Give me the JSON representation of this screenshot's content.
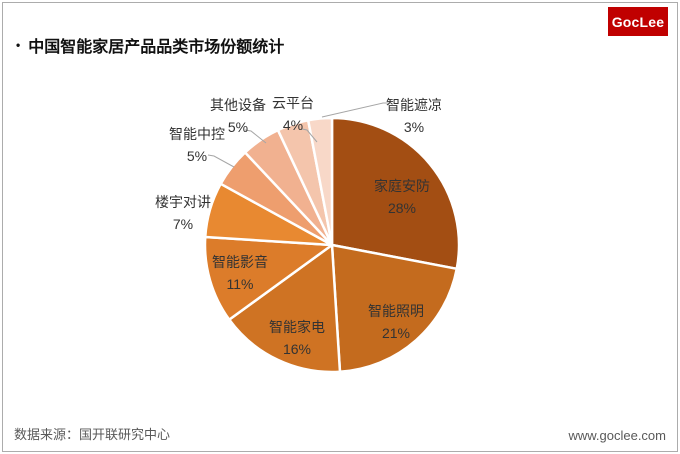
{
  "header": {
    "bullet": "•",
    "title": "中国智能家居产品品类市场份额统计",
    "logo_text": "GocLee",
    "logo_bg": "#C00000"
  },
  "footer": {
    "source": "数据来源：国开联研究中心",
    "website": "www.goclee.com"
  },
  "colors": {
    "slice_border": "#FFFFFF",
    "leader_line": "#A6A6A6",
    "label_text": "#333333",
    "frame_border": "#ACACAC",
    "footer_text": "#595959"
  },
  "chart_data": {
    "type": "pie",
    "title": "中国智能家居产品品类市场份额统计",
    "total": 100,
    "start": "12-oclock-clockwise",
    "legend_position": "none (labels on/around slices)",
    "slices": [
      {
        "name": "家庭安防",
        "value": 28,
        "pct_label": "28%",
        "color": "#A34E13",
        "label_placement": "inside"
      },
      {
        "name": "智能照明",
        "value": 21,
        "pct_label": "21%",
        "color": "#C46B1E",
        "label_placement": "inside"
      },
      {
        "name": "智能家电",
        "value": 16,
        "pct_label": "16%",
        "color": "#CF7323",
        "label_placement": "inside"
      },
      {
        "name": "智能影音",
        "value": 11,
        "pct_label": "11%",
        "color": "#DC7C2A",
        "label_placement": "inside"
      },
      {
        "name": "楼宇对讲",
        "value": 7,
        "pct_label": "7%",
        "color": "#E88931",
        "label_placement": "outside"
      },
      {
        "name": "智能中控",
        "value": 5,
        "pct_label": "5%",
        "color": "#EE9E6E",
        "label_placement": "outside"
      },
      {
        "name": "其他设备",
        "value": 5,
        "pct_label": "5%",
        "color": "#F1B190",
        "label_placement": "outside"
      },
      {
        "name": "云平台",
        "value": 4,
        "pct_label": "4%",
        "color": "#F4C5AC",
        "label_placement": "outside"
      },
      {
        "name": "智能遮凉",
        "value": 3,
        "pct_label": "3%",
        "color": "#F8D8C8",
        "label_placement": "outside"
      }
    ]
  }
}
